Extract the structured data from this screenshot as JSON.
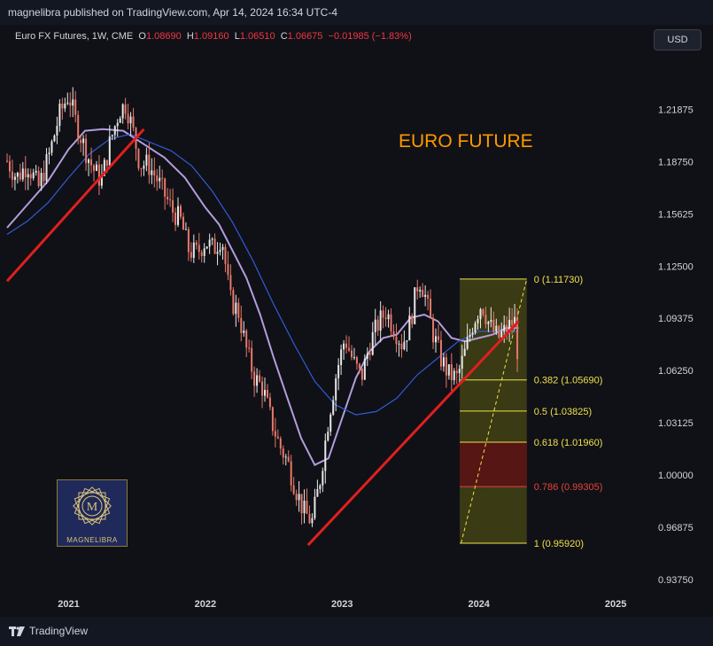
{
  "header": {
    "publisher": "magnelibra published on TradingView.com, Apr 14, 2024 16:34 UTC-4"
  },
  "legend": {
    "symbol": "Euro FX Futures, 1W, CME",
    "o_key": "O",
    "o_val": "1.08690",
    "h_key": "H",
    "h_val": "1.09160",
    "l_key": "L",
    "l_val": "1.06510",
    "c_key": "C",
    "c_val": "1.06675",
    "change": "−0.01985 (−1.83%)"
  },
  "toolbar": {
    "currency_label": "USD"
  },
  "annotation": {
    "text": "EURO FUTURE"
  },
  "logo": {
    "text": "MAGNELIBRA",
    "monogram": "M"
  },
  "footer": {
    "brand": "TradingView"
  },
  "colors": {
    "background": "#131722",
    "chart_bg": "#0f1116",
    "candle_up": "#e8e8e8",
    "candle_down": "#e8786a",
    "trendline": "#e01f1f",
    "ma_fast": "#b39ddb",
    "ma_slow": "#2f5bd6",
    "fib_zone": "#4a4a16",
    "fib_line": "#f0e14a",
    "fib_red": "#e0463a",
    "annotation": "#ff9800"
  },
  "chart_data": {
    "type": "candlestick",
    "title": "Euro FX Futures, 1W, CME",
    "y_axis": {
      "ticks": [
        {
          "label": "1.21875",
          "value": 1.21875
        },
        {
          "label": "1.18750",
          "value": 1.1875
        },
        {
          "label": "1.15625",
          "value": 1.15625
        },
        {
          "label": "1.12500",
          "value": 1.125
        },
        {
          "label": "1.09375",
          "value": 1.09375
        },
        {
          "label": "1.06250",
          "value": 1.0625
        },
        {
          "label": "1.03125",
          "value": 1.03125
        },
        {
          "label": "1.00000",
          "value": 1.0
        },
        {
          "label": "0.96875",
          "value": 0.96875
        },
        {
          "label": "0.93750",
          "value": 0.9375
        }
      ],
      "range": [
        0.93,
        1.262
      ]
    },
    "x_axis": {
      "ticks": [
        {
          "label": "2021",
          "value": 2021.0
        },
        {
          "label": "2022",
          "value": 2022.0
        },
        {
          "label": "2023",
          "value": 2023.0
        },
        {
          "label": "2024",
          "value": 2024.0
        },
        {
          "label": "2025",
          "value": 2025.0
        }
      ],
      "range": [
        2020.55,
        2025.2
      ]
    },
    "last_close": 1.06675,
    "price_path": [
      [
        2020.55,
        1.188
      ],
      [
        2020.62,
        1.178
      ],
      [
        2020.7,
        1.186
      ],
      [
        2020.78,
        1.172
      ],
      [
        2020.86,
        1.192
      ],
      [
        2020.93,
        1.215
      ],
      [
        2021.0,
        1.228
      ],
      [
        2021.05,
        1.212
      ],
      [
        2021.12,
        1.195
      ],
      [
        2021.18,
        1.183
      ],
      [
        2021.24,
        1.176
      ],
      [
        2021.3,
        1.198
      ],
      [
        2021.37,
        1.218
      ],
      [
        2021.42,
        1.222
      ],
      [
        2021.47,
        1.206
      ],
      [
        2021.52,
        1.186
      ],
      [
        2021.58,
        1.186
      ],
      [
        2021.64,
        1.178
      ],
      [
        2021.7,
        1.168
      ],
      [
        2021.76,
        1.158
      ],
      [
        2021.82,
        1.152
      ],
      [
        2021.88,
        1.134
      ],
      [
        2021.94,
        1.133
      ],
      [
        2022.0,
        1.14
      ],
      [
        2022.06,
        1.135
      ],
      [
        2022.12,
        1.143
      ],
      [
        2022.18,
        1.105
      ],
      [
        2022.24,
        1.098
      ],
      [
        2022.3,
        1.075
      ],
      [
        2022.36,
        1.058
      ],
      [
        2022.42,
        1.052
      ],
      [
        2022.48,
        1.033
      ],
      [
        2022.54,
        1.018
      ],
      [
        2022.6,
        1.008
      ],
      [
        2022.66,
        0.992
      ],
      [
        2022.72,
        0.978
      ],
      [
        2022.78,
        0.972
      ],
      [
        2022.84,
        0.998
      ],
      [
        2022.9,
        1.034
      ],
      [
        2022.96,
        1.062
      ],
      [
        2023.02,
        1.082
      ],
      [
        2023.08,
        1.068
      ],
      [
        2023.14,
        1.058
      ],
      [
        2023.2,
        1.078
      ],
      [
        2023.26,
        1.09
      ],
      [
        2023.32,
        1.098
      ],
      [
        2023.38,
        1.088
      ],
      [
        2023.44,
        1.078
      ],
      [
        2023.5,
        1.092
      ],
      [
        2023.56,
        1.118
      ],
      [
        2023.6,
        1.11
      ],
      [
        2023.66,
        1.086
      ],
      [
        2023.72,
        1.07
      ],
      [
        2023.78,
        1.06
      ],
      [
        2023.84,
        1.058
      ],
      [
        2023.9,
        1.074
      ],
      [
        2023.96,
        1.092
      ],
      [
        2024.02,
        1.103
      ],
      [
        2024.08,
        1.089
      ],
      [
        2024.14,
        1.082
      ],
      [
        2024.2,
        1.087
      ],
      [
        2024.26,
        1.093
      ],
      [
        2024.29,
        1.067
      ]
    ],
    "moving_averages": [
      {
        "kind": "fast",
        "points": [
          [
            2020.55,
            1.148
          ],
          [
            2020.7,
            1.162
          ],
          [
            2020.85,
            1.176
          ],
          [
            2021.0,
            1.195
          ],
          [
            2021.12,
            1.206
          ],
          [
            2021.25,
            1.207
          ],
          [
            2021.4,
            1.206
          ],
          [
            2021.55,
            1.198
          ],
          [
            2021.7,
            1.19
          ],
          [
            2021.85,
            1.178
          ],
          [
            2022.0,
            1.16
          ],
          [
            2022.1,
            1.15
          ],
          [
            2022.2,
            1.134
          ],
          [
            2022.3,
            1.118
          ],
          [
            2022.4,
            1.096
          ],
          [
            2022.5,
            1.07
          ],
          [
            2022.6,
            1.046
          ],
          [
            2022.7,
            1.022
          ],
          [
            2022.8,
            1.006
          ],
          [
            2022.9,
            1.01
          ],
          [
            2023.0,
            1.034
          ],
          [
            2023.1,
            1.058
          ],
          [
            2023.2,
            1.074
          ],
          [
            2023.3,
            1.082
          ],
          [
            2023.4,
            1.084
          ],
          [
            2023.5,
            1.094
          ],
          [
            2023.6,
            1.096
          ],
          [
            2023.7,
            1.092
          ],
          [
            2023.8,
            1.082
          ],
          [
            2023.9,
            1.08
          ],
          [
            2024.0,
            1.082
          ],
          [
            2024.1,
            1.084
          ],
          [
            2024.2,
            1.088
          ],
          [
            2024.29,
            1.088
          ]
        ]
      },
      {
        "kind": "slow",
        "points": [
          [
            2020.55,
            1.144
          ],
          [
            2020.7,
            1.152
          ],
          [
            2020.85,
            1.163
          ],
          [
            2021.0,
            1.178
          ],
          [
            2021.15,
            1.192
          ],
          [
            2021.3,
            1.201
          ],
          [
            2021.45,
            1.204
          ],
          [
            2021.6,
            1.199
          ],
          [
            2021.75,
            1.194
          ],
          [
            2021.9,
            1.185
          ],
          [
            2022.05,
            1.17
          ],
          [
            2022.2,
            1.151
          ],
          [
            2022.35,
            1.128
          ],
          [
            2022.5,
            1.102
          ],
          [
            2022.65,
            1.078
          ],
          [
            2022.8,
            1.056
          ],
          [
            2022.95,
            1.042
          ],
          [
            2023.1,
            1.036
          ],
          [
            2023.25,
            1.038
          ],
          [
            2023.4,
            1.046
          ],
          [
            2023.55,
            1.06
          ],
          [
            2023.7,
            1.07
          ],
          [
            2023.85,
            1.08
          ],
          [
            2024.0,
            1.086
          ],
          [
            2024.15,
            1.086
          ],
          [
            2024.29,
            1.086
          ]
        ]
      }
    ],
    "trendlines": [
      {
        "from": [
          2020.55,
          1.116
        ],
        "to": [
          2021.55,
          1.207
        ]
      },
      {
        "from": [
          2022.75,
          0.958
        ],
        "to": [
          2024.29,
          1.092
        ]
      }
    ],
    "fib_retracement": {
      "x_range": [
        2023.86,
        2024.35
      ],
      "diagonal": {
        "from": [
          2023.87,
          0.9592
        ],
        "to": [
          2024.35,
          1.1173
        ]
      },
      "levels": [
        {
          "label": "0 (1.11730)",
          "value": 1.1173
        },
        {
          "label": "0.382 (1.05690)",
          "value": 1.0569
        },
        {
          "label": "0.5 (1.03825)",
          "value": 1.03825
        },
        {
          "label": "0.618 (1.01960)",
          "value": 1.0196
        },
        {
          "label": "0.786 (0.99305)",
          "value": 0.99305
        },
        {
          "label": "1 (0.95920)",
          "value": 0.9592
        }
      ]
    }
  }
}
